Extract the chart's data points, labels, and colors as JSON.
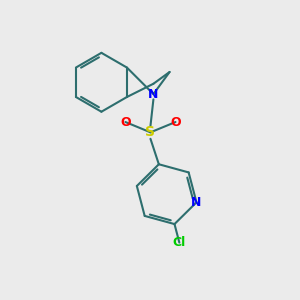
{
  "bg_color": "#ebebeb",
  "bond_color": "#2d6e6e",
  "N_color": "#0000ff",
  "S_color": "#cccc00",
  "O_color": "#ff0000",
  "Cl_color": "#00cc00",
  "line_width": 1.5,
  "figsize": [
    3.0,
    3.0
  ],
  "dpi": 100,
  "xlim": [
    0,
    10
  ],
  "ylim": [
    0,
    10
  ]
}
